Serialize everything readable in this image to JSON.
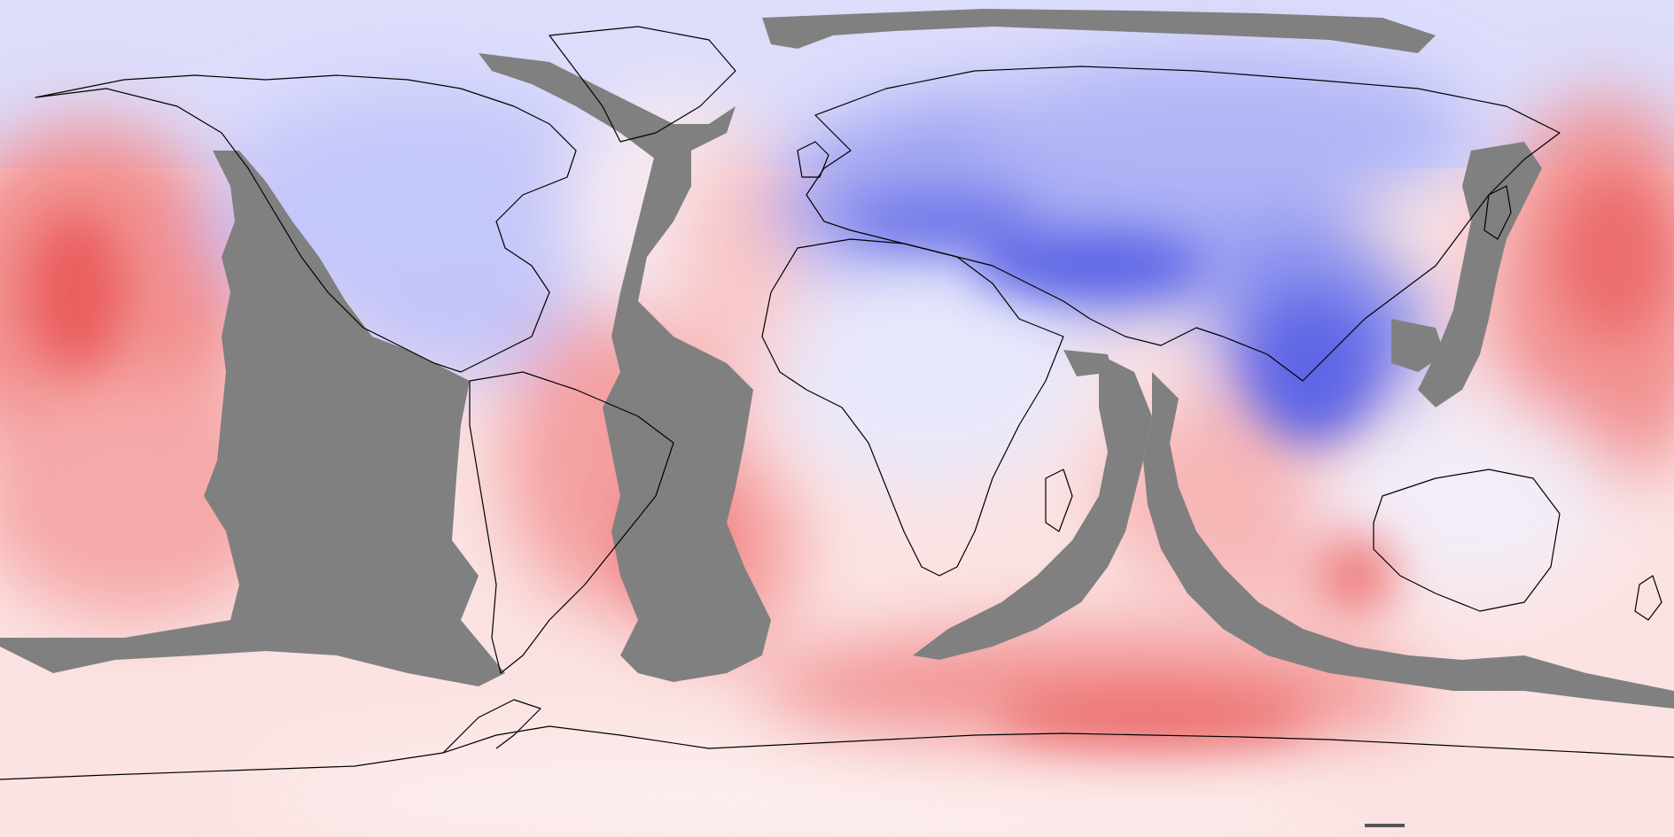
{
  "map": {
    "projection": "equirectangular",
    "extent": {
      "lon": [
        -180,
        180
      ],
      "lat": [
        -90,
        90
      ]
    },
    "title": "",
    "legend": "none",
    "colors": {
      "strong_positive": "#e94b4b",
      "positive": "#f48a8a",
      "weak_positive": "#fbd3d3",
      "near_zero": "#fdf4f4",
      "weak_negative": "#d9dbff",
      "negative": "#a9adf5",
      "strong_negative": "#5c64e6",
      "masked": "#808080",
      "coastline": "#000000"
    },
    "regions": [
      {
        "name": "north-pacific-warm-anomaly",
        "sign": "positive",
        "intensity": 0.8
      },
      {
        "name": "north-america-cold-anomaly",
        "sign": "negative",
        "intensity": 0.45
      },
      {
        "name": "north-atlantic-warm-band",
        "sign": "positive",
        "intensity": 0.4
      },
      {
        "name": "eurasia-cold-anomaly",
        "sign": "negative",
        "intensity": 0.85
      },
      {
        "name": "himalaya-strong-cold",
        "sign": "negative",
        "intensity": 1.0
      },
      {
        "name": "southeast-asia-cold",
        "sign": "negative",
        "intensity": 0.8
      },
      {
        "name": "south-atlantic-warm",
        "sign": "positive",
        "intensity": 0.7
      },
      {
        "name": "southern-ocean-warm-ring",
        "sign": "positive",
        "intensity": 0.75
      },
      {
        "name": "indian-ocean-warm",
        "sign": "positive",
        "intensity": 0.45
      },
      {
        "name": "western-pacific-warm",
        "sign": "positive",
        "intensity": 0.7
      },
      {
        "name": "antarctic-near-zero",
        "sign": "positive",
        "intensity": 0.2
      }
    ],
    "masked_regions": [
      "east-pacific-band",
      "central-atlantic-band",
      "western-indian-band",
      "eastern-indian-band",
      "arctic-fringe",
      "west-pacific-band"
    ]
  }
}
